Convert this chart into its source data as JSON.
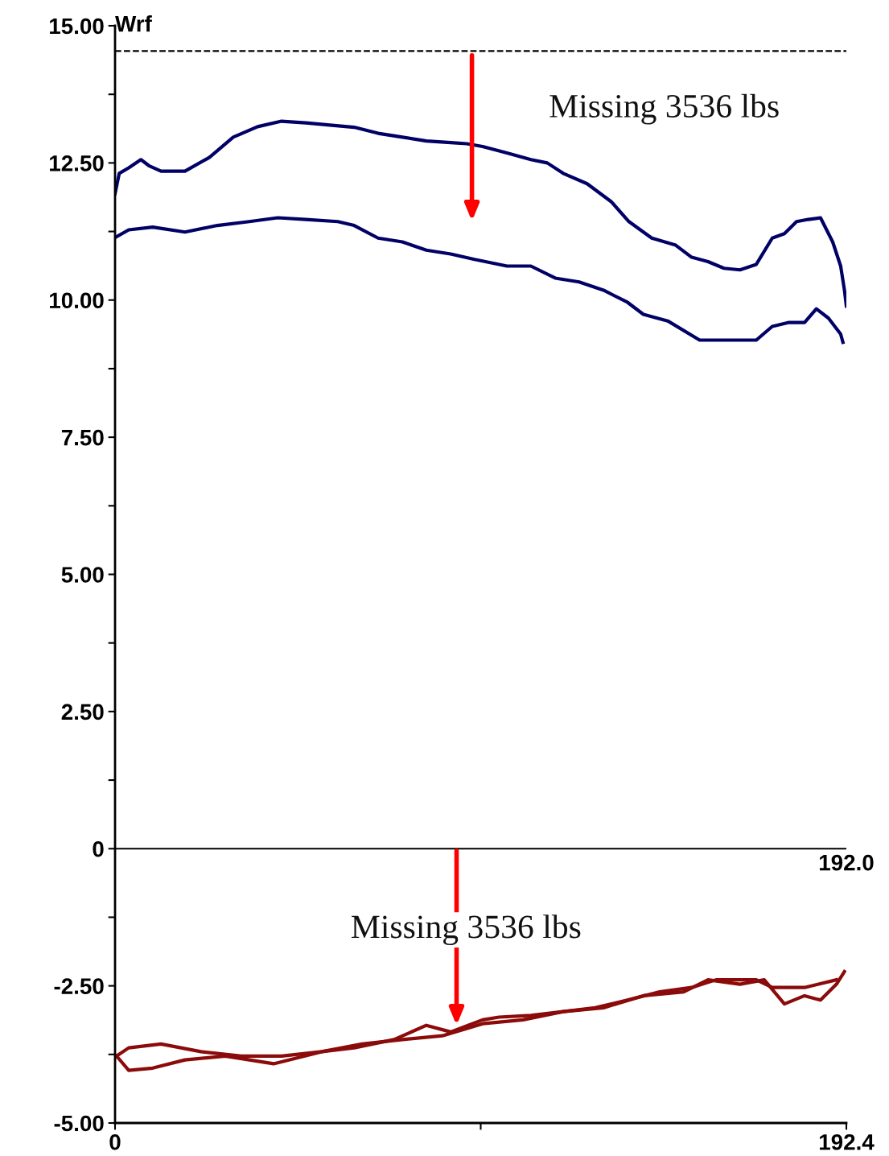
{
  "chart_data": {
    "type": "line",
    "ylabel": "Wrf",
    "xlim": [
      0,
      192.4
    ],
    "xticks": [
      0,
      {
        "value": 96.2,
        "label": null
      },
      192.4
    ],
    "ylim": [
      -5,
      15
    ],
    "yticks": [
      {
        "value": 15,
        "label": "15.00"
      },
      {
        "value": 13.75,
        "label": null
      },
      {
        "value": 12.5,
        "label": "12.50"
      },
      {
        "value": 11.25,
        "label": null
      },
      {
        "value": 10,
        "label": "10.00"
      },
      {
        "value": 8.75,
        "label": null
      },
      {
        "value": 7.5,
        "label": "7.50"
      },
      {
        "value": 6.25,
        "label": null
      },
      {
        "value": 5,
        "label": "5.00"
      },
      {
        "value": 3.75,
        "label": null
      },
      {
        "value": 2.5,
        "label": "2.50"
      },
      {
        "value": 1.25,
        "label": null
      },
      0,
      {
        "value": -1.25,
        "label": null
      },
      {
        "value": -2.5,
        "label": "-2.50"
      },
      {
        "value": -3.75,
        "label": null
      },
      {
        "value": -5,
        "label": "-5.00"
      }
    ],
    "grid": false,
    "legend": false,
    "marker": "none",
    "line_style": "solid",
    "series": [
      {
        "color": "#000066",
        "x": [
          0,
          1.1,
          3.6,
          6.8,
          8.9,
          12.1,
          18.4,
          24.8,
          31.1,
          37.5,
          43.8,
          50.2,
          56.5,
          62.9,
          69.2,
          75.6,
          81.9,
          88.3,
          92.5,
          96.7,
          103.1,
          109.4,
          113.7,
          117.9,
          124.2,
          130.6,
          135.2,
          141.2,
          147.5,
          151.7,
          156.0,
          160.2,
          164.4,
          168.7,
          172.9,
          176.1,
          179.3,
          182.4,
          185.6,
          188.8,
          190.9,
          191.9,
          192.4
        ],
        "values": [
          11.94,
          12.31,
          12.41,
          12.56,
          12.45,
          12.35,
          12.35,
          12.6,
          12.97,
          13.16,
          13.26,
          13.23,
          13.19,
          13.15,
          13.04,
          12.97,
          12.9,
          12.87,
          12.85,
          12.8,
          12.68,
          12.56,
          12.5,
          12.31,
          12.12,
          11.79,
          11.43,
          11.13,
          11.0,
          10.78,
          10.7,
          10.58,
          10.55,
          10.65,
          11.13,
          11.21,
          11.43,
          11.47,
          11.5,
          11.06,
          10.62,
          10.18,
          9.89
        ]
      },
      {
        "color": "#000066",
        "x": [
          0,
          3.6,
          9.9,
          18.4,
          26.9,
          35.3,
          42.8,
          50.2,
          58.6,
          62.9,
          69.2,
          75.6,
          81.9,
          88.3,
          94.6,
          103.1,
          109.4,
          115.8,
          122.1,
          128.5,
          134.8,
          139.0,
          145.4,
          153.8,
          160.2,
          168.7,
          172.9,
          177.1,
          181.4,
          184.5,
          187.7,
          190.9,
          191.5
        ],
        "values": [
          11.14,
          11.28,
          11.33,
          11.24,
          11.36,
          11.43,
          11.5,
          11.47,
          11.43,
          11.36,
          11.13,
          11.06,
          10.91,
          10.84,
          10.74,
          10.62,
          10.62,
          10.4,
          10.33,
          10.18,
          9.96,
          9.74,
          9.62,
          9.27,
          9.27,
          9.27,
          9.52,
          9.59,
          9.59,
          9.84,
          9.67,
          9.38,
          9.23
        ]
      },
      {
        "color": "#8b0a0a",
        "x": [
          0.4,
          3.6,
          9.9,
          18.4,
          29.0,
          41.7,
          54.4,
          65.0,
          75.6,
          86.1,
          96.7,
          107.3,
          117.9,
          128.5,
          139.0,
          149.6,
          156.0,
          164.4,
          170.8,
          176.1,
          181.4,
          185.6,
          189.8,
          191.9
        ],
        "values": [
          -3.78,
          -4.04,
          -4.0,
          -3.85,
          -3.78,
          -3.92,
          -3.7,
          -3.56,
          -3.48,
          -3.41,
          -3.19,
          -3.12,
          -2.97,
          -2.9,
          -2.68,
          -2.61,
          -2.39,
          -2.47,
          -2.39,
          -2.83,
          -2.68,
          -2.76,
          -2.47,
          -2.24
        ]
      },
      {
        "color": "#8b0a0a",
        "x": [
          189.8,
          181.4,
          172.9,
          168.7,
          158.1,
          151.7,
          143.3,
          134.8,
          126.3,
          117.9,
          109.4,
          101.0,
          96.7,
          88.3,
          81.9,
          73.4,
          62.9,
          54.4,
          43.8,
          33.2,
          22.6,
          12.1,
          3.6,
          0.4
        ],
        "values": [
          -2.39,
          -2.53,
          -2.53,
          -2.39,
          -2.39,
          -2.53,
          -2.61,
          -2.76,
          -2.9,
          -2.97,
          -3.04,
          -3.07,
          -3.12,
          -3.34,
          -3.22,
          -3.48,
          -3.63,
          -3.7,
          -3.78,
          -3.78,
          -3.7,
          -3.56,
          -3.63,
          -3.78
        ]
      }
    ],
    "ref_lines": [
      {
        "axis": "y",
        "value": 14.54,
        "line_style": "dashed",
        "color": "#000000"
      },
      {
        "axis": "y",
        "value": 0,
        "line_style": "solid",
        "color": "#000000"
      }
    ],
    "annotations": [
      "Missing 3536 lbs",
      "Missing 3536 lbs",
      "192.0"
    ]
  }
}
